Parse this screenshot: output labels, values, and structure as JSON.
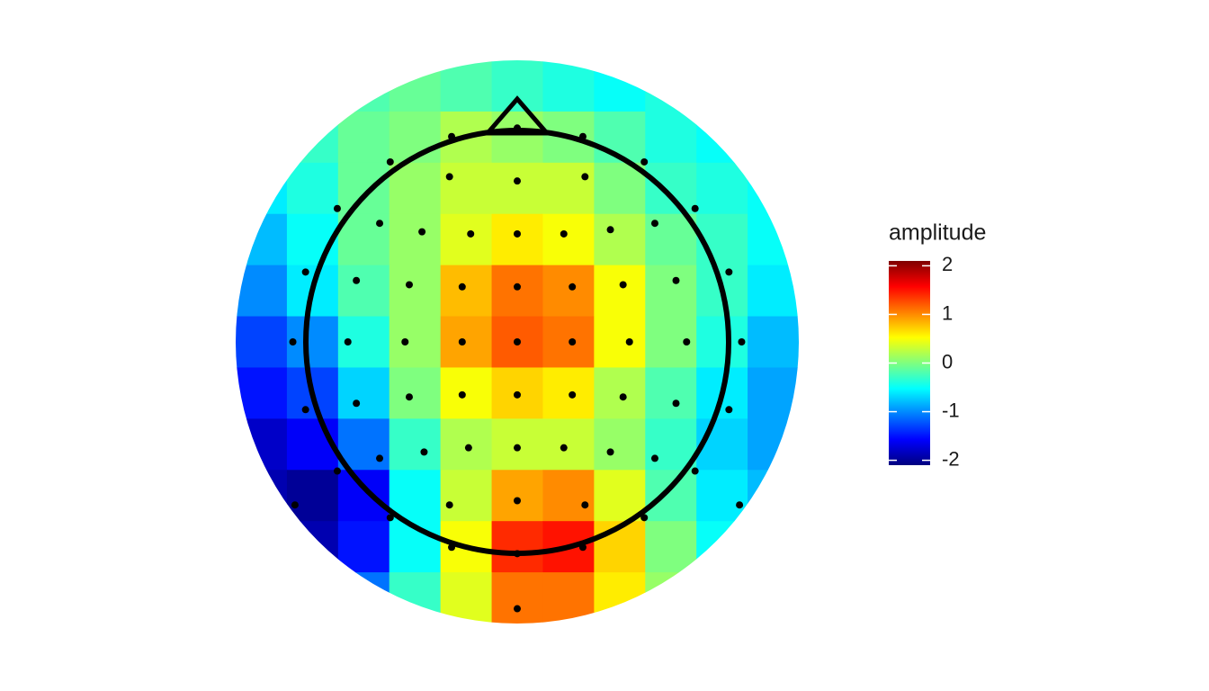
{
  "chart_data": {
    "type": "topomap",
    "legend_title": "amplitude",
    "colorbar": {
      "lim": [
        -2.1,
        2.1
      ],
      "ticks": [
        -2,
        -1,
        0,
        1,
        2
      ],
      "colormap": [
        "#00007f",
        "#0000ff",
        "#007fff",
        "#00ffff",
        "#7fff7f",
        "#ffff00",
        "#ff7f00",
        "#ff0000",
        "#7f0000"
      ]
    },
    "xlim": [
      -1.33,
      1.33
    ],
    "ylim": [
      -1.33,
      1.33
    ],
    "grid": {
      "values": [
        [
          -0.3,
          -0.3,
          -0.2,
          -0.1,
          -0.2,
          -0.3,
          -0.4,
          -0.5,
          -0.4,
          -0.3,
          -0.3
        ],
        [
          -0.4,
          -0.3,
          -0.1,
          0.0,
          0.2,
          0.1,
          0.0,
          -0.2,
          -0.4,
          -0.5,
          -0.5
        ],
        [
          -0.6,
          -0.4,
          -0.1,
          0.1,
          0.3,
          0.3,
          0.3,
          0.0,
          -0.3,
          -0.4,
          -0.5
        ],
        [
          -0.8,
          -0.5,
          -0.1,
          0.1,
          0.4,
          0.6,
          0.5,
          0.2,
          -0.1,
          -0.3,
          -0.5
        ],
        [
          -1.0,
          -0.6,
          -0.2,
          0.1,
          0.8,
          1.1,
          1.0,
          0.5,
          0.0,
          -0.3,
          -0.6
        ],
        [
          -1.3,
          -1.0,
          -0.4,
          0.1,
          0.9,
          1.2,
          1.1,
          0.5,
          0.0,
          -0.4,
          -0.8
        ],
        [
          -1.5,
          -1.3,
          -0.7,
          0.0,
          0.5,
          0.7,
          0.6,
          0.2,
          -0.2,
          -0.6,
          -0.9
        ],
        [
          -1.8,
          -1.6,
          -1.1,
          -0.3,
          0.2,
          0.3,
          0.3,
          0.1,
          -0.3,
          -0.7,
          -0.9
        ],
        [
          -1.9,
          -2.0,
          -1.6,
          -0.5,
          0.3,
          0.9,
          1.0,
          0.4,
          -0.2,
          -0.6,
          -0.8
        ],
        [
          -1.8,
          -1.9,
          -1.5,
          -0.5,
          0.5,
          1.4,
          1.5,
          0.7,
          0.0,
          -0.5,
          -0.6
        ],
        [
          -1.5,
          -1.5,
          -1.1,
          -0.3,
          0.4,
          1.1,
          1.1,
          0.6,
          0.1,
          -0.3,
          -0.5
        ]
      ]
    },
    "electrodes": {
      "x": [
        -0.31,
        0,
        0.31,
        -0.6,
        -0.32,
        0,
        0.32,
        0.6,
        -0.85,
        -0.65,
        -0.45,
        -0.22,
        0,
        0.22,
        0.44,
        0.65,
        0.84,
        -1.0,
        -0.76,
        -0.51,
        -0.26,
        0,
        0.26,
        0.5,
        0.75,
        1.0,
        -1.06,
        -0.8,
        -0.53,
        -0.26,
        0,
        0.26,
        0.53,
        0.8,
        1.06,
        -1.0,
        -0.76,
        -0.51,
        -0.26,
        0,
        0.26,
        0.5,
        0.75,
        1.0,
        -0.85,
        -0.65,
        -0.44,
        -0.23,
        0,
        0.22,
        0.44,
        0.65,
        0.84,
        -1.05,
        -0.6,
        -0.32,
        0,
        0.32,
        0.6,
        1.05,
        -0.31,
        0,
        0.31,
        0
      ],
      "y": [
        0.97,
        1.01,
        0.97,
        0.85,
        0.78,
        0.76,
        0.78,
        0.85,
        0.63,
        0.56,
        0.52,
        0.51,
        0.51,
        0.51,
        0.53,
        0.56,
        0.63,
        0.33,
        0.29,
        0.27,
        0.26,
        0.26,
        0.26,
        0.27,
        0.29,
        0.33,
        0,
        0,
        0,
        0,
        0,
        0,
        0,
        0,
        0,
        -0.32,
        -0.29,
        -0.26,
        -0.25,
        -0.25,
        -0.25,
        -0.26,
        -0.29,
        -0.32,
        -0.61,
        -0.55,
        -0.52,
        -0.5,
        -0.5,
        -0.5,
        -0.52,
        -0.55,
        -0.61,
        -0.77,
        -0.83,
        -0.77,
        -0.75,
        -0.77,
        -0.83,
        -0.77,
        -0.97,
        -1.0,
        -0.97,
        -1.26
      ]
    }
  }
}
